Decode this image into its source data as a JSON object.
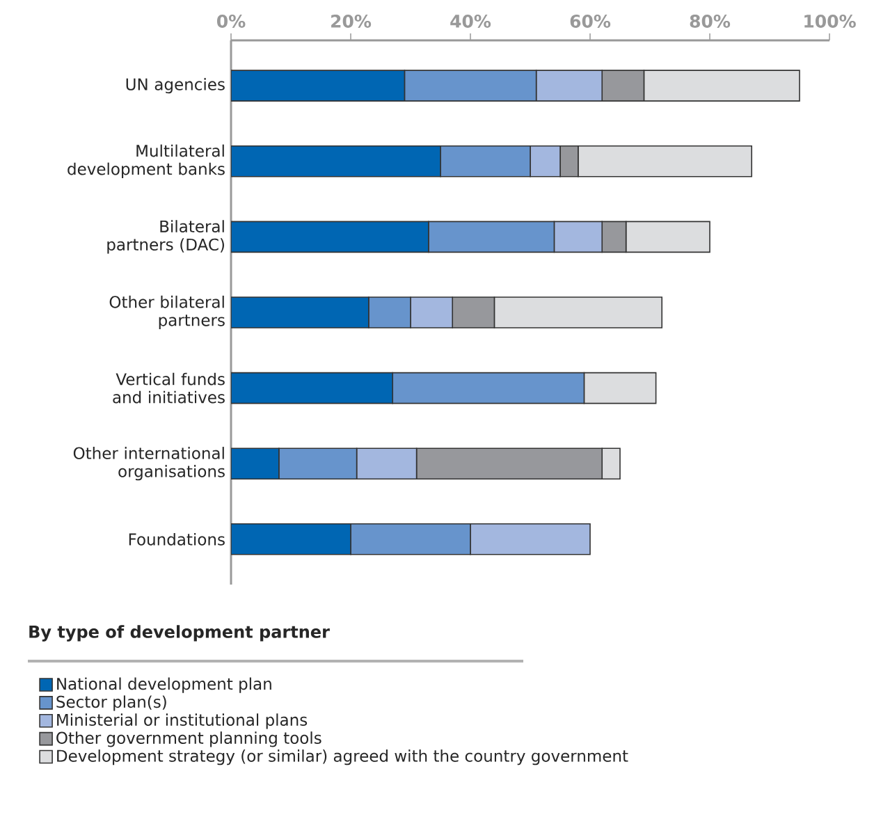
{
  "chart_data": {
    "type": "bar",
    "orientation": "horizontal",
    "stacked": true,
    "categories": [
      "UN agencies",
      "Multilateral development banks",
      "Bilateral partners (DAC)",
      "Other bilateral partners",
      "Vertical funds and initiatives",
      "Other international organisations",
      "Foundations"
    ],
    "series": [
      {
        "name": "National development plan",
        "color": "#0066b3",
        "values": [
          29,
          35,
          33,
          23,
          27,
          8,
          20
        ]
      },
      {
        "name": "Sector plan(s)",
        "color": "#6794cc",
        "values": [
          22,
          15,
          21,
          7,
          32,
          13,
          20
        ]
      },
      {
        "name": "Ministerial or institutional plans",
        "color": "#a3b7df",
        "values": [
          11,
          5,
          8,
          7,
          0,
          10,
          20
        ]
      },
      {
        "name": "Other government planning tools",
        "color": "#97989c",
        "values": [
          7,
          3,
          4,
          7,
          0,
          31,
          0
        ]
      },
      {
        "name": "Development strategy (or similar) agreed with the country government",
        "color": "#dcdddf",
        "values": [
          26,
          29,
          14,
          28,
          12,
          3,
          0
        ]
      }
    ],
    "xlim": [
      0,
      100
    ],
    "xticks": [
      {
        "value": 0,
        "label": "0%"
      },
      {
        "value": 20,
        "label": "20%"
      },
      {
        "value": 40,
        "label": "40%"
      },
      {
        "value": 60,
        "label": "60%"
      },
      {
        "value": 80,
        "label": "80%"
      },
      {
        "value": 100,
        "label": "100%"
      }
    ],
    "legend": "bottom",
    "legend_title": "By type of development partner"
  }
}
